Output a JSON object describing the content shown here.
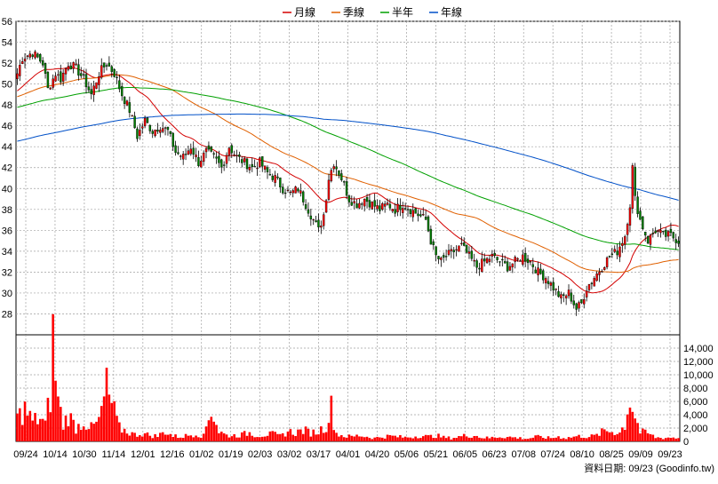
{
  "legend": [
    {
      "label": "月線",
      "color": "#d40000"
    },
    {
      "label": "季線",
      "color": "#e06000"
    },
    {
      "label": "半年",
      "color": "#00a000"
    },
    {
      "label": "年線",
      "color": "#0050c8"
    }
  ],
  "colors": {
    "up": "#ff0000",
    "down": "#008000",
    "volume": "#ff0000",
    "grid": "#a0a0a0",
    "border": "#000000"
  },
  "footer": "資料日期: 09/23  (Goodinfo.tw)",
  "chart_data": [
    {
      "type": "candlestick",
      "title": "",
      "ylim": [
        26,
        56
      ],
      "yticks": [
        28,
        30,
        32,
        34,
        36,
        38,
        40,
        42,
        44,
        46,
        48,
        50,
        52,
        54,
        56
      ],
      "xticks": [
        "09/24",
        "10/14",
        "10/30",
        "11/14",
        "12/01",
        "12/16",
        "01/02",
        "01/19",
        "02/03",
        "03/02",
        "03/17",
        "04/01",
        "04/20",
        "05/06",
        "05/21",
        "06/05",
        "06/23",
        "07/08",
        "07/24",
        "08/10",
        "08/25",
        "09/09",
        "09/23"
      ],
      "grid": true,
      "close_anchors": [
        [
          0,
          51.0
        ],
        [
          2,
          52.5
        ],
        [
          6,
          53.0
        ],
        [
          10,
          52.0
        ],
        [
          12,
          49.5
        ],
        [
          15,
          51.0
        ],
        [
          17,
          50.5
        ],
        [
          20,
          52.0
        ],
        [
          23,
          51.5
        ],
        [
          26,
          50.5
        ],
        [
          29,
          49.0
        ],
        [
          32,
          51.0
        ],
        [
          35,
          52.0
        ],
        [
          38,
          51.0
        ],
        [
          41,
          49.0
        ],
        [
          44,
          47.5
        ],
        [
          47,
          45.0
        ],
        [
          50,
          46.5
        ],
        [
          53,
          45.5
        ],
        [
          56,
          46.0
        ],
        [
          59,
          45.5
        ],
        [
          62,
          43.5
        ],
        [
          65,
          43.0
        ],
        [
          68,
          44.0
        ],
        [
          71,
          42.5
        ],
        [
          74,
          43.5
        ],
        [
          77,
          43.0
        ],
        [
          80,
          42.0
        ],
        [
          83,
          44.0
        ],
        [
          86,
          43.0
        ],
        [
          89,
          42.5
        ],
        [
          92,
          42.0
        ],
        [
          95,
          42.5
        ],
        [
          98,
          41.5
        ],
        [
          101,
          41.0
        ],
        [
          104,
          40.0
        ],
        [
          107,
          39.5
        ],
        [
          110,
          40.0
        ],
        [
          113,
          38.5
        ],
        [
          116,
          37.0
        ],
        [
          118,
          36.0
        ],
        [
          120,
          37.5
        ],
        [
          122,
          41.0
        ],
        [
          124,
          42.5
        ],
        [
          127,
          41.0
        ],
        [
          130,
          39.0
        ],
        [
          133,
          38.5
        ],
        [
          136,
          39.0
        ],
        [
          139,
          38.5
        ],
        [
          142,
          38.0
        ],
        [
          145,
          38.5
        ],
        [
          148,
          38.0
        ],
        [
          151,
          38.5
        ],
        [
          154,
          38.0
        ],
        [
          157,
          37.5
        ],
        [
          160,
          37.0
        ],
        [
          162,
          35.0
        ],
        [
          164,
          33.5
        ],
        [
          166,
          33.0
        ],
        [
          168,
          33.5
        ],
        [
          171,
          34.0
        ],
        [
          174,
          34.5
        ],
        [
          177,
          33.5
        ],
        [
          180,
          32.5
        ],
        [
          183,
          33.0
        ],
        [
          186,
          33.5
        ],
        [
          189,
          33.0
        ],
        [
          192,
          32.5
        ],
        [
          195,
          33.0
        ],
        [
          198,
          33.5
        ],
        [
          201,
          33.0
        ],
        [
          204,
          32.0
        ],
        [
          207,
          31.5
        ],
        [
          210,
          30.5
        ],
        [
          213,
          29.5
        ],
        [
          216,
          30.0
        ],
        [
          219,
          28.5
        ],
        [
          221,
          29.0
        ],
        [
          223,
          30.5
        ],
        [
          226,
          31.5
        ],
        [
          229,
          32.5
        ],
        [
          232,
          33.5
        ],
        [
          235,
          34.0
        ],
        [
          238,
          35.5
        ],
        [
          240,
          38.5
        ],
        [
          241,
          42.0
        ],
        [
          242,
          39.0
        ],
        [
          244,
          37.0
        ],
        [
          247,
          35.0
        ],
        [
          250,
          36.0
        ],
        [
          253,
          35.5
        ],
        [
          256,
          35.5
        ],
        [
          259,
          35.0
        ]
      ],
      "candles_count": 260,
      "moving_averages": [
        {
          "name": "月線",
          "window": 20
        },
        {
          "name": "季線",
          "window": 60
        },
        {
          "name": "半年",
          "window": 120
        },
        {
          "name": "年線",
          "window": 240
        }
      ]
    },
    {
      "type": "bar",
      "title": "",
      "ylim": [
        0,
        16000
      ],
      "yticks": [
        0,
        2000,
        4000,
        6000,
        8000,
        10000,
        12000,
        14000
      ],
      "ytick_labels": [
        "0",
        "2,000",
        "4,000",
        "6,000",
        "8,000",
        "10,000",
        "12,000",
        "14,000"
      ],
      "volume_anchors": [
        [
          0,
          3500
        ],
        [
          3,
          4800
        ],
        [
          6,
          3000
        ],
        [
          9,
          3500
        ],
        [
          11,
          2500
        ],
        [
          13,
          7000
        ],
        [
          14,
          15000
        ],
        [
          16,
          6000
        ],
        [
          18,
          2500
        ],
        [
          20,
          4000
        ],
        [
          23,
          2000
        ],
        [
          26,
          3000
        ],
        [
          29,
          2000
        ],
        [
          32,
          3000
        ],
        [
          35,
          8000
        ],
        [
          37,
          5500
        ],
        [
          40,
          2000
        ],
        [
          43,
          1500
        ],
        [
          46,
          1000
        ],
        [
          49,
          1200
        ],
        [
          52,
          900
        ],
        [
          55,
          800
        ],
        [
          58,
          1500
        ],
        [
          61,
          800
        ],
        [
          64,
          700
        ],
        [
          67,
          900
        ],
        [
          70,
          1200
        ],
        [
          73,
          800
        ],
        [
          76,
          5000
        ],
        [
          79,
          1500
        ],
        [
          82,
          900
        ],
        [
          85,
          900
        ],
        [
          88,
          1000
        ],
        [
          91,
          1300
        ],
        [
          94,
          900
        ],
        [
          97,
          1000
        ],
        [
          100,
          1100
        ],
        [
          103,
          800
        ],
        [
          106,
          1500
        ],
        [
          109,
          1300
        ],
        [
          112,
          1700
        ],
        [
          115,
          1300
        ],
        [
          118,
          1500
        ],
        [
          121,
          2400
        ],
        [
          123,
          5000
        ],
        [
          125,
          1200
        ],
        [
          128,
          800
        ],
        [
          131,
          700
        ],
        [
          134,
          900
        ],
        [
          137,
          700
        ],
        [
          140,
          500
        ],
        [
          143,
          700
        ],
        [
          146,
          800
        ],
        [
          149,
          700
        ],
        [
          152,
          600
        ],
        [
          155,
          700
        ],
        [
          158,
          900
        ],
        [
          161,
          700
        ],
        [
          164,
          900
        ],
        [
          167,
          600
        ],
        [
          170,
          500
        ],
        [
          173,
          700
        ],
        [
          176,
          900
        ],
        [
          179,
          900
        ],
        [
          182,
          600
        ],
        [
          185,
          500
        ],
        [
          188,
          700
        ],
        [
          191,
          700
        ],
        [
          194,
          600
        ],
        [
          197,
          500
        ],
        [
          200,
          400
        ],
        [
          203,
          700
        ],
        [
          206,
          600
        ],
        [
          209,
          500
        ],
        [
          212,
          700
        ],
        [
          215,
          500
        ],
        [
          218,
          700
        ],
        [
          221,
          800
        ],
        [
          224,
          700
        ],
        [
          227,
          900
        ],
        [
          230,
          1600
        ],
        [
          233,
          1500
        ],
        [
          236,
          1300
        ],
        [
          238,
          2600
        ],
        [
          240,
          6500
        ],
        [
          242,
          3800
        ],
        [
          244,
          1400
        ],
        [
          247,
          1200
        ],
        [
          250,
          600
        ],
        [
          253,
          500
        ],
        [
          256,
          600
        ],
        [
          259,
          500
        ]
      ]
    }
  ]
}
